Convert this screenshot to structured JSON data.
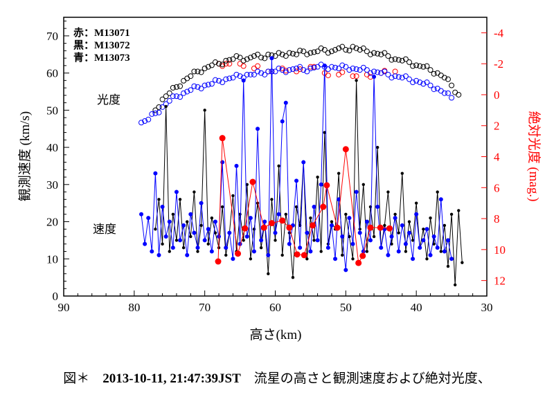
{
  "chart_data": {
    "type": "scatter",
    "xlabel": "高さ(km)",
    "ylabel": "観測速度 (km/s)",
    "y2label": "絶対光度 (mag.)",
    "xlim": [
      90,
      30
    ],
    "ylim": [
      0,
      75
    ],
    "y2lim": [
      -5,
      13
    ],
    "y2_inverted": true,
    "xticks": [
      90,
      80,
      70,
      60,
      50,
      40,
      30
    ],
    "yticks": [
      0,
      10,
      20,
      30,
      40,
      50,
      60,
      70
    ],
    "y2ticks": [
      -4,
      -2,
      0,
      2,
      4,
      6,
      8,
      10,
      12
    ],
    "grid": false,
    "legend": {
      "placement": "top-left",
      "entries": [
        {
          "label": "赤：M13071",
          "color": "#ff0000"
        },
        {
          "label": "黒：M13072",
          "color": "#000000"
        },
        {
          "label": "青：M13073",
          "color": "#0000ff"
        }
      ]
    },
    "annotations": {
      "magnitude": "光度",
      "velocity": "速度"
    },
    "velocity_series": [
      {
        "name": "M13071",
        "color": "#ff0000",
        "points": [
          [
            68.1,
            9.3
          ],
          [
            67.5,
            42.5
          ],
          [
            65.3,
            11.4
          ],
          [
            64.3,
            18.2
          ],
          [
            63.2,
            30.7
          ],
          [
            61.6,
            18.4
          ],
          [
            60.5,
            19.6
          ],
          [
            59.0,
            20.3
          ],
          [
            58.0,
            18.4
          ],
          [
            56.9,
            11.2
          ],
          [
            55.9,
            11.0
          ],
          [
            54.7,
            19.0
          ],
          [
            53.2,
            24.0
          ],
          [
            52.7,
            29.8
          ],
          [
            51.2,
            18.4
          ],
          [
            50.0,
            39.5
          ],
          [
            48.2,
            8.9
          ],
          [
            47.6,
            10.8
          ],
          [
            46.5,
            18.4
          ],
          [
            45.1,
            18.4
          ],
          [
            43.8,
            18.2
          ]
        ]
      },
      {
        "name": "M13072",
        "color": "#000000",
        "points": [
          [
            77,
            18
          ],
          [
            76.5,
            26
          ],
          [
            76,
            14
          ],
          [
            75.5,
            51
          ],
          [
            75,
            12
          ],
          [
            74.5,
            22
          ],
          [
            74,
            15
          ],
          [
            73.5,
            26
          ],
          [
            73,
            13
          ],
          [
            72.5,
            20
          ],
          [
            72,
            16
          ],
          [
            71.5,
            28
          ],
          [
            71,
            12
          ],
          [
            70.5,
            19
          ],
          [
            70,
            50
          ],
          [
            69.5,
            14
          ],
          [
            69,
            21
          ],
          [
            68.5,
            17
          ],
          [
            68,
            13
          ],
          [
            67.5,
            24
          ],
          [
            67,
            11
          ],
          [
            66.5,
            17
          ],
          [
            66,
            27
          ],
          [
            65.5,
            12
          ],
          [
            65,
            22
          ],
          [
            64.5,
            15
          ],
          [
            64,
            30
          ],
          [
            63.5,
            10
          ],
          [
            63,
            18
          ],
          [
            62.5,
            25
          ],
          [
            62,
            13
          ],
          [
            61.5,
            20
          ],
          [
            61,
            6
          ],
          [
            60.5,
            26
          ],
          [
            60,
            15
          ],
          [
            59.5,
            35
          ],
          [
            59,
            11
          ],
          [
            58.5,
            22
          ],
          [
            58,
            17
          ],
          [
            57.5,
            5
          ],
          [
            57,
            24
          ],
          [
            56.5,
            19
          ],
          [
            56,
            36
          ],
          [
            55.5,
            10
          ],
          [
            55,
            21
          ],
          [
            54.5,
            15
          ],
          [
            54,
            32
          ],
          [
            53.5,
            12
          ],
          [
            53,
            44
          ],
          [
            52.5,
            14
          ],
          [
            52,
            20
          ],
          [
            51.5,
            18
          ],
          [
            51,
            33
          ],
          [
            50.5,
            11
          ],
          [
            50,
            22
          ],
          [
            49.5,
            16
          ],
          [
            49,
            10
          ],
          [
            48.5,
            58
          ],
          [
            48,
            18
          ],
          [
            47.5,
            30
          ],
          [
            47,
            12
          ],
          [
            46.5,
            24
          ],
          [
            46,
            16
          ],
          [
            45.5,
            40
          ],
          [
            45,
            13
          ],
          [
            44.5,
            19
          ],
          [
            44,
            28
          ],
          [
            43.5,
            14
          ],
          [
            43,
            22
          ],
          [
            42.5,
            17
          ],
          [
            42,
            33
          ],
          [
            41.5,
            12
          ],
          [
            41,
            20
          ],
          [
            40.5,
            15
          ],
          [
            40,
            25
          ],
          [
            39.5,
            13
          ],
          [
            39,
            18
          ],
          [
            38.5,
            10
          ],
          [
            38,
            21
          ],
          [
            37.5,
            14
          ],
          [
            37,
            28
          ],
          [
            36.5,
            12
          ],
          [
            36,
            19
          ],
          [
            35.5,
            8
          ],
          [
            35,
            22
          ],
          [
            34.5,
            3
          ],
          [
            34,
            23
          ],
          [
            33.5,
            9
          ]
        ]
      },
      {
        "name": "M13073",
        "color": "#0000ff",
        "points": [
          [
            79,
            22
          ],
          [
            78.5,
            14
          ],
          [
            78,
            21
          ],
          [
            77.5,
            12
          ],
          [
            77,
            33
          ],
          [
            76.5,
            11
          ],
          [
            76,
            24
          ],
          [
            75.5,
            16
          ],
          [
            75,
            20
          ],
          [
            74.5,
            13
          ],
          [
            74,
            28
          ],
          [
            73.5,
            15
          ],
          [
            73,
            19
          ],
          [
            72.5,
            11
          ],
          [
            72,
            22
          ],
          [
            71.5,
            17
          ],
          [
            71,
            13
          ],
          [
            70.5,
            25
          ],
          [
            70,
            15
          ],
          [
            69.5,
            18
          ],
          [
            69,
            12
          ],
          [
            68.5,
            20
          ],
          [
            68,
            16
          ],
          [
            67.5,
            36
          ],
          [
            67,
            13
          ],
          [
            66.5,
            17
          ],
          [
            66,
            10
          ],
          [
            65.5,
            35
          ],
          [
            65,
            14
          ],
          [
            64.5,
            58
          ],
          [
            64,
            16
          ],
          [
            63.5,
            21
          ],
          [
            63,
            12
          ],
          [
            62.5,
            45
          ],
          [
            62,
            15
          ],
          [
            61.5,
            20
          ],
          [
            61,
            11
          ],
          [
            60.5,
            64
          ],
          [
            60,
            17
          ],
          [
            59.5,
            22
          ],
          [
            59,
            47
          ],
          [
            58.5,
            52
          ],
          [
            58,
            14
          ],
          [
            57.5,
            19
          ],
          [
            57,
            31
          ],
          [
            56.5,
            13
          ],
          [
            56,
            36
          ],
          [
            55.5,
            17
          ],
          [
            55,
            12
          ],
          [
            54.5,
            24
          ],
          [
            54,
            15
          ],
          [
            53.5,
            30
          ],
          [
            53,
            62
          ],
          [
            52.5,
            13
          ],
          [
            52,
            19
          ],
          [
            51.5,
            10
          ],
          [
            51,
            26
          ],
          [
            50.5,
            16
          ],
          [
            50,
            7
          ],
          [
            49.5,
            21
          ],
          [
            49,
            14
          ],
          [
            48.5,
            28
          ],
          [
            48,
            17
          ],
          [
            47.5,
            12
          ],
          [
            47,
            20
          ],
          [
            46.5,
            15
          ],
          [
            46,
            59
          ],
          [
            45.5,
            24
          ],
          [
            45,
            13
          ],
          [
            44.5,
            18
          ],
          [
            44,
            11
          ],
          [
            43.5,
            16
          ],
          [
            43,
            21
          ],
          [
            42.5,
            12
          ],
          [
            42,
            19
          ],
          [
            41.5,
            14
          ],
          [
            41,
            17
          ],
          [
            40.5,
            10
          ],
          [
            40,
            22
          ],
          [
            39.5,
            13
          ],
          [
            39,
            15
          ],
          [
            38.5,
            18
          ],
          [
            38,
            11
          ],
          [
            37.5,
            16
          ],
          [
            37,
            13
          ],
          [
            36.5,
            26
          ],
          [
            36,
            12
          ],
          [
            35.5,
            15
          ],
          [
            35,
            10
          ]
        ]
      }
    ],
    "magnitude_series": [
      {
        "name": "M13071",
        "color": "#ff0000",
        "points": [
          [
            68,
            -2.0
          ],
          [
            67,
            -2.0
          ],
          [
            65,
            -2.0
          ],
          [
            63,
            -1.7
          ],
          [
            61,
            -1.5
          ],
          [
            59,
            -1.7
          ],
          [
            57,
            -1.5
          ],
          [
            55,
            -1.8
          ],
          [
            53,
            -1.4
          ],
          [
            51,
            -1.3
          ],
          [
            49,
            -1.2
          ],
          [
            47,
            -1.3
          ],
          [
            45,
            -1.4
          ],
          [
            43,
            -1.5
          ]
        ]
      },
      {
        "name": "M13072",
        "color": "#000000",
        "points": [
          [
            77,
            1.0
          ],
          [
            76,
            0.3
          ],
          [
            75,
            -0.1
          ],
          [
            74,
            -0.5
          ],
          [
            73,
            -0.9
          ],
          [
            72,
            -1.2
          ],
          [
            71,
            -1.5
          ],
          [
            70,
            -1.7
          ],
          [
            69,
            -1.9
          ],
          [
            68,
            -2.0
          ],
          [
            67,
            -2.2
          ],
          [
            66,
            -2.3
          ],
          [
            65,
            -2.4
          ],
          [
            64,
            -2.3
          ],
          [
            63,
            -2.5
          ],
          [
            62,
            -2.4
          ],
          [
            61,
            -2.6
          ],
          [
            60,
            -2.5
          ],
          [
            59,
            -2.6
          ],
          [
            58,
            -2.7
          ],
          [
            57,
            -2.6
          ],
          [
            56,
            -2.8
          ],
          [
            55,
            -2.7
          ],
          [
            54,
            -2.8
          ],
          [
            53,
            -2.9
          ],
          [
            52,
            -2.8
          ],
          [
            51,
            -3.0
          ],
          [
            50,
            -2.9
          ],
          [
            49,
            -3.1
          ],
          [
            48,
            -2.9
          ],
          [
            47,
            -2.8
          ],
          [
            46,
            -2.7
          ],
          [
            45,
            -2.6
          ],
          [
            44,
            -2.5
          ],
          [
            43,
            -2.3
          ],
          [
            42,
            -2.2
          ],
          [
            41,
            -2.1
          ],
          [
            40,
            -1.9
          ],
          [
            39,
            -1.8
          ],
          [
            38,
            -1.6
          ],
          [
            37,
            -1.4
          ],
          [
            36,
            -1.1
          ],
          [
            35,
            -0.6
          ],
          [
            34,
            0.0
          ]
        ]
      },
      {
        "name": "M13073",
        "color": "#0000ff",
        "points": [
          [
            79,
            1.8
          ],
          [
            78,
            1.6
          ],
          [
            77,
            1.2
          ],
          [
            76,
            0.8
          ],
          [
            75,
            0.4
          ],
          [
            74,
            0.1
          ],
          [
            73,
            -0.1
          ],
          [
            72,
            -0.3
          ],
          [
            71,
            -0.5
          ],
          [
            70,
            -0.6
          ],
          [
            69,
            -0.7
          ],
          [
            68,
            -0.9
          ],
          [
            67,
            -1.0
          ],
          [
            66,
            -1.1
          ],
          [
            65,
            -1.2
          ],
          [
            64,
            -1.3
          ],
          [
            63,
            -1.3
          ],
          [
            62,
            -1.4
          ],
          [
            61,
            -1.5
          ],
          [
            60,
            -1.5
          ],
          [
            59,
            -1.6
          ],
          [
            58,
            -1.6
          ],
          [
            57,
            -1.7
          ],
          [
            56,
            -1.6
          ],
          [
            55,
            -1.7
          ],
          [
            54,
            -1.8
          ],
          [
            53,
            -1.8
          ],
          [
            52,
            -1.8
          ],
          [
            51,
            -1.7
          ],
          [
            50,
            -1.8
          ],
          [
            49,
            -1.7
          ],
          [
            48,
            -1.6
          ],
          [
            47,
            -1.6
          ],
          [
            46,
            -1.5
          ],
          [
            45,
            -1.4
          ],
          [
            44,
            -1.3
          ],
          [
            43,
            -1.2
          ],
          [
            42,
            -1.1
          ],
          [
            41,
            -1.0
          ],
          [
            40,
            -0.9
          ],
          [
            39,
            -0.7
          ],
          [
            38,
            -0.6
          ],
          [
            37,
            -0.4
          ],
          [
            36,
            -0.1
          ],
          [
            35,
            0.2
          ]
        ]
      }
    ]
  },
  "caption": {
    "figure": "図＊",
    "datetime": "2013-10-11, 21:47:39JST",
    "text": "流星の高さと観測速度および絶対光度、"
  }
}
